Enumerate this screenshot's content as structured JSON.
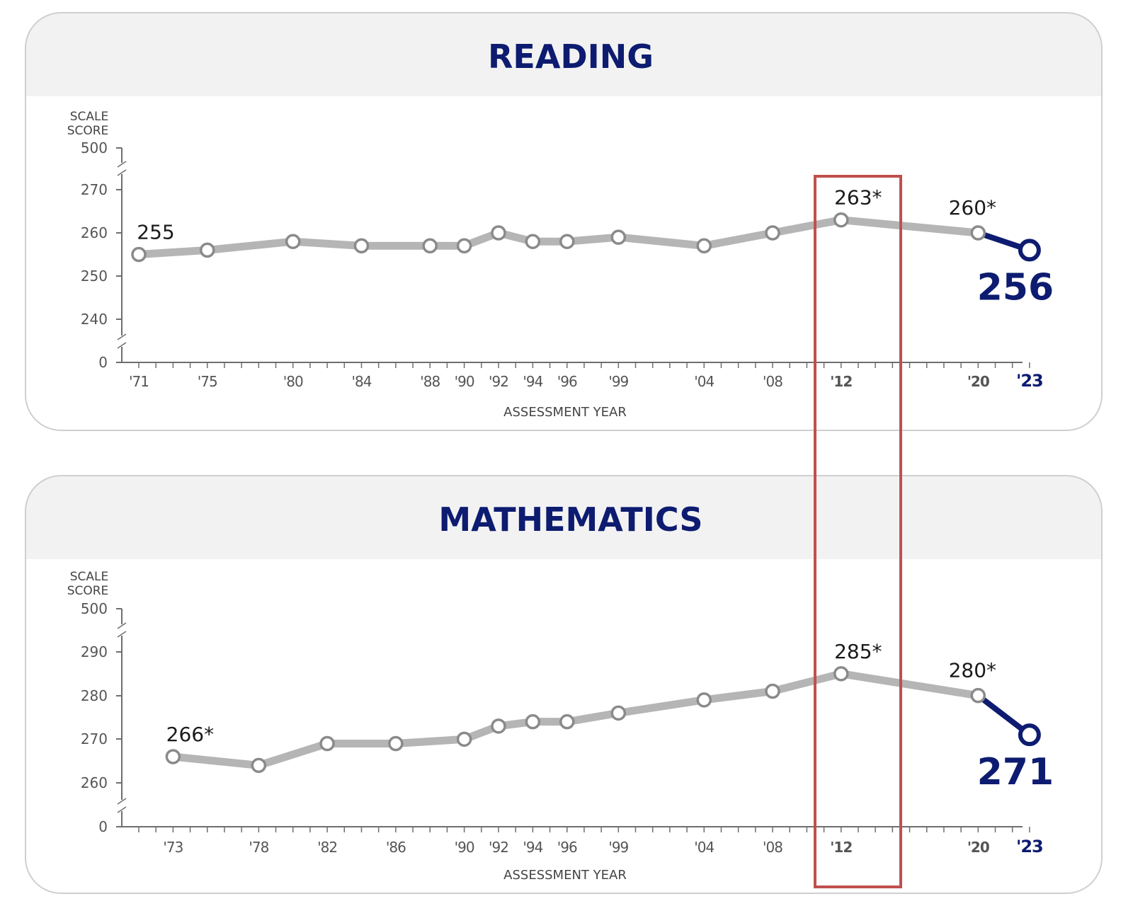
{
  "colors": {
    "title": "#0d1c70",
    "line": "#b5b5b5",
    "point_stroke": "#8a8a8a",
    "latest": "#0d1c70",
    "axis": "#6e6e6e",
    "text": "#1a1a1a",
    "header_bg": "#f2f2f2",
    "panel_border": "#cfcfcf",
    "highlight": "#c0504d"
  },
  "highlight_box": {
    "year": "'12"
  },
  "chart_data": [
    {
      "type": "line",
      "title": "READING",
      "ylabel": "SCALE SCORE",
      "xlabel": "ASSESSMENT YEAR",
      "yaxis_ticks": [
        "500",
        "270",
        "260",
        "250",
        "240",
        "0"
      ],
      "y_break": true,
      "ylim": [
        240,
        270
      ],
      "x": [
        1971,
        1975,
        1980,
        1984,
        1988,
        1990,
        1992,
        1994,
        1996,
        1999,
        2004,
        2008,
        2012,
        2020,
        2023
      ],
      "x_tick_labels": [
        "'71",
        "'75",
        "'80",
        "'84",
        "'88",
        "'90",
        "'92",
        "'94",
        "'96",
        "'99",
        "'04",
        "'08",
        "'12",
        "'20",
        "'23"
      ],
      "values": [
        255,
        256,
        258,
        257,
        257,
        257,
        260,
        258,
        258,
        259,
        257,
        260,
        263,
        260,
        256
      ],
      "data_labels": [
        {
          "x": 1971,
          "text": "255"
        },
        {
          "x": 2012,
          "text": "263*"
        },
        {
          "x": 2020,
          "text": "260*"
        },
        {
          "x": 2023,
          "text": "256"
        }
      ],
      "grid": false,
      "legend": "none"
    },
    {
      "type": "line",
      "title": "MATHEMATICS",
      "ylabel": "SCALE SCORE",
      "xlabel": "ASSESSMENT YEAR",
      "yaxis_ticks": [
        "500",
        "290",
        "280",
        "270",
        "260",
        "0"
      ],
      "y_break": true,
      "ylim": [
        260,
        290
      ],
      "x": [
        1973,
        1978,
        1982,
        1986,
        1990,
        1992,
        1994,
        1996,
        1999,
        2004,
        2008,
        2012,
        2020,
        2023
      ],
      "x_tick_labels": [
        "'73",
        "'78",
        "'82",
        "'86",
        "'90",
        "'92",
        "'94",
        "'96",
        "'99",
        "'04",
        "'08",
        "'12",
        "'20",
        "'23"
      ],
      "values": [
        266,
        264,
        269,
        269,
        270,
        273,
        274,
        274,
        276,
        279,
        281,
        285,
        280,
        271
      ],
      "data_labels": [
        {
          "x": 1973,
          "text": "266*"
        },
        {
          "x": 2012,
          "text": "285*"
        },
        {
          "x": 2020,
          "text": "280*"
        },
        {
          "x": 2023,
          "text": "271"
        }
      ],
      "grid": false,
      "legend": "none"
    }
  ]
}
